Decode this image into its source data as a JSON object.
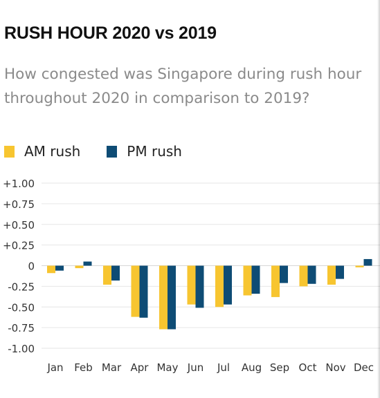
{
  "header": {
    "title": "RUSH HOUR 2020 vs 2019",
    "subtitle": "How congested was Singapore during rush hour throughout 2020 in comparison to 2019?"
  },
  "legend": [
    {
      "label": "AM rush",
      "color": "#F7C530"
    },
    {
      "label": "PM rush",
      "color": "#0E4C75"
    }
  ],
  "chart_data": {
    "type": "bar",
    "categories": [
      "Jan",
      "Feb",
      "Mar",
      "Apr",
      "May",
      "Jun",
      "Jul",
      "Aug",
      "Sep",
      "Oct",
      "Nov",
      "Dec"
    ],
    "series": [
      {
        "name": "AM rush",
        "color": "#F7C530",
        "values": [
          -0.09,
          -0.03,
          -0.23,
          -0.62,
          -0.77,
          -0.47,
          -0.5,
          -0.36,
          -0.38,
          -0.25,
          -0.23,
          -0.02
        ]
      },
      {
        "name": "PM rush",
        "color": "#0E4C75",
        "values": [
          -0.06,
          0.05,
          -0.18,
          -0.63,
          -0.77,
          -0.51,
          -0.47,
          -0.34,
          -0.21,
          -0.22,
          -0.16,
          0.08
        ]
      }
    ],
    "yticks": [
      1.0,
      0.75,
      0.5,
      0.25,
      0,
      -0.25,
      -0.5,
      -0.75,
      -1.0
    ],
    "ytick_labels": [
      "+1.00",
      "+0.75",
      "+0.50",
      "+0.25",
      "0",
      "-0.25",
      "-0.50",
      "-0.75",
      "-1.00"
    ],
    "ylim": [
      -1.0,
      1.0
    ],
    "xlabel": "",
    "ylabel": "",
    "grid": true,
    "legend_position": "top-left"
  }
}
